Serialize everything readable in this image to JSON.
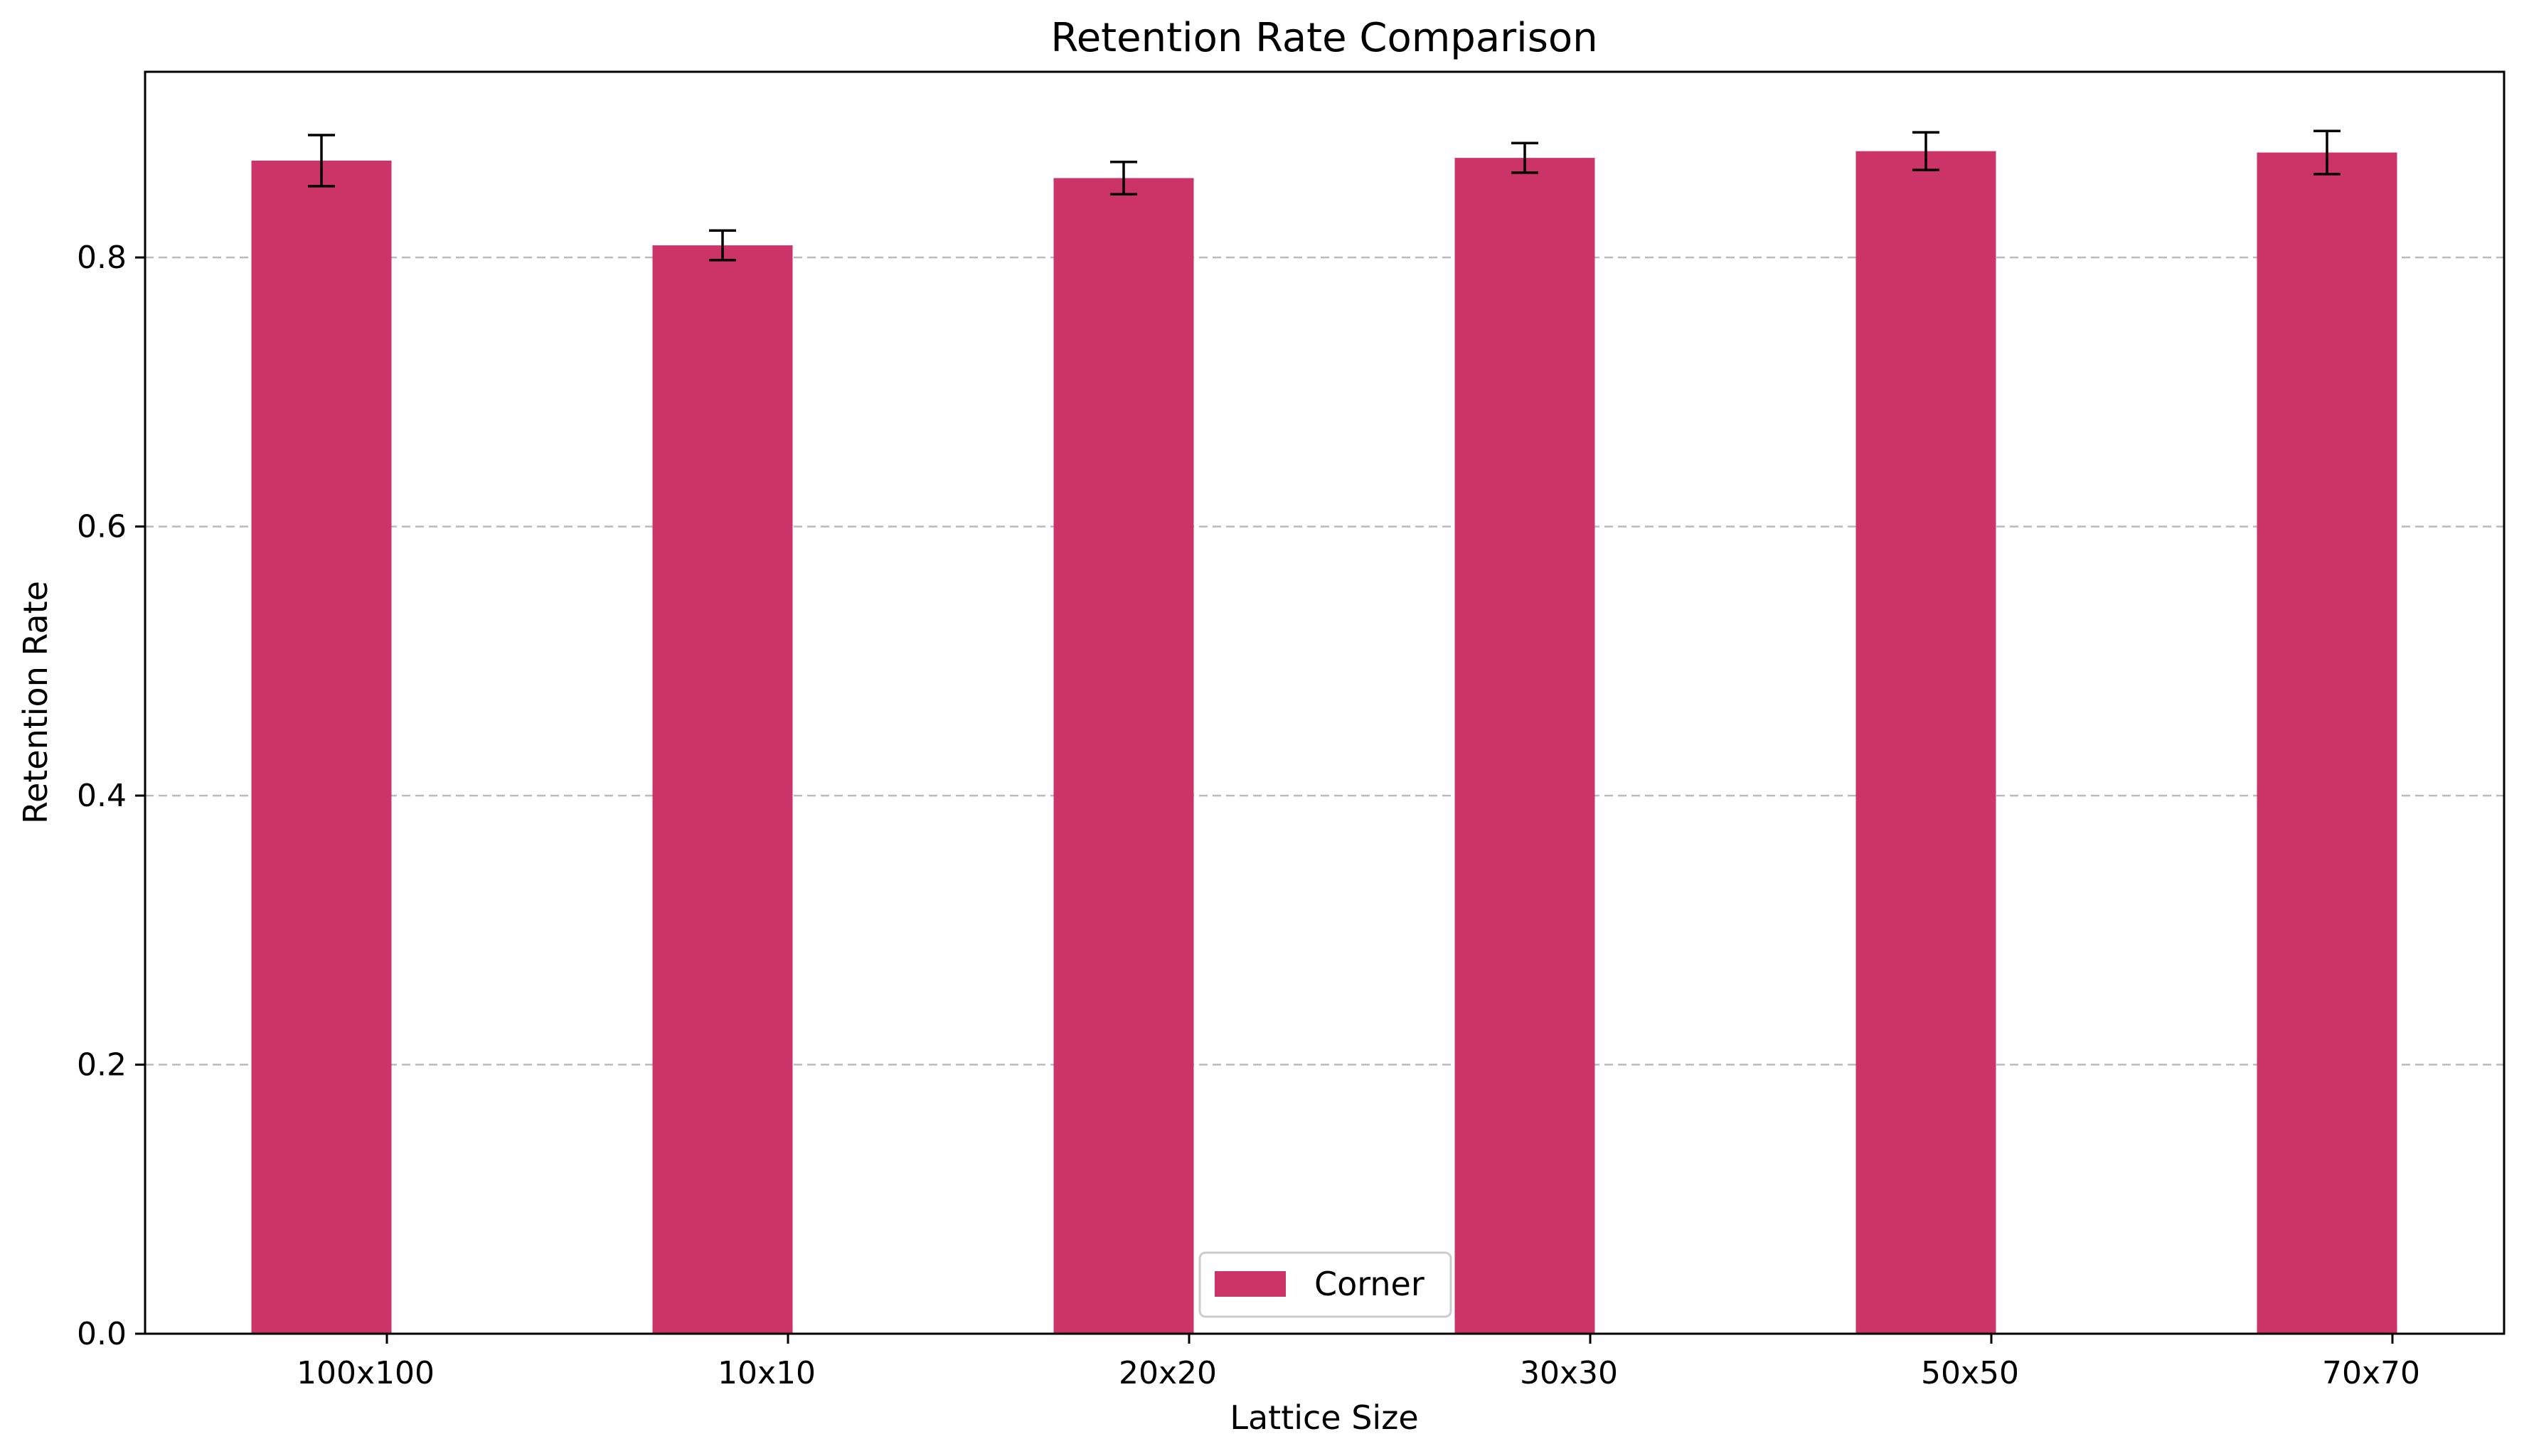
{
  "chart_data": {
    "type": "bar",
    "title": "Retention Rate Comparison",
    "xlabel": "Lattice Size",
    "ylabel": "Retention Rate",
    "categories": [
      "100x100",
      "10x10",
      "20x20",
      "30x30",
      "50x50",
      "70x70"
    ],
    "series": [
      {
        "name": "Corner",
        "color": "#cc3366",
        "values": [
          0.872,
          0.809,
          0.859,
          0.874,
          0.879,
          0.878
        ],
        "errors": [
          0.019,
          0.011,
          0.012,
          0.011,
          0.014,
          0.016
        ]
      }
    ],
    "ylim": [
      0,
      0.938
    ],
    "yticks": [
      0.0,
      0.2,
      0.4,
      0.6,
      0.8
    ],
    "ytick_labels": [
      "0.0",
      "0.2",
      "0.4",
      "0.6",
      "0.8"
    ],
    "grid": {
      "axis": "y",
      "style": "dashed",
      "color": "#bbbbbb"
    },
    "legend": {
      "position": "lower center"
    }
  }
}
